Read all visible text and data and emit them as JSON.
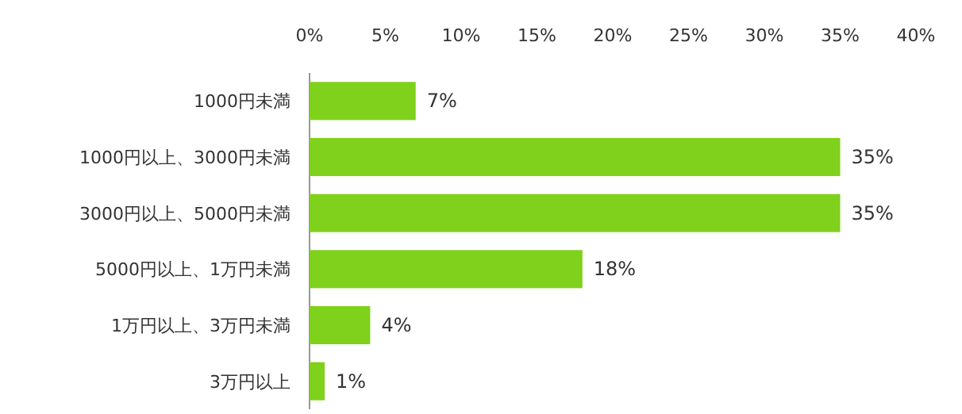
{
  "chart_data": {
    "type": "bar",
    "orientation": "horizontal",
    "categories": [
      "1000円未満",
      "1000円以上、3000円未満",
      "3000円以上、5000円未満",
      "5000円以上、1万円未満",
      "1万円以上、3万円未満",
      "3万円以上"
    ],
    "values": [
      7,
      35,
      35,
      18,
      4,
      1
    ],
    "value_labels": [
      "7%",
      "35%",
      "35%",
      "18%",
      "4%",
      "1%"
    ],
    "color": "#7fd11b",
    "xlim": [
      0,
      40
    ],
    "xticks": [
      {
        "value": 0,
        "label": "0%"
      },
      {
        "value": 5,
        "label": "5%"
      },
      {
        "value": 10,
        "label": "10%"
      },
      {
        "value": 15,
        "label": "15%"
      },
      {
        "value": 20,
        "label": "20%"
      },
      {
        "value": 25,
        "label": "25%"
      },
      {
        "value": 30,
        "label": "30%"
      },
      {
        "value": 35,
        "label": "35%"
      },
      {
        "value": 40,
        "label": "40%"
      }
    ],
    "grid": false
  }
}
